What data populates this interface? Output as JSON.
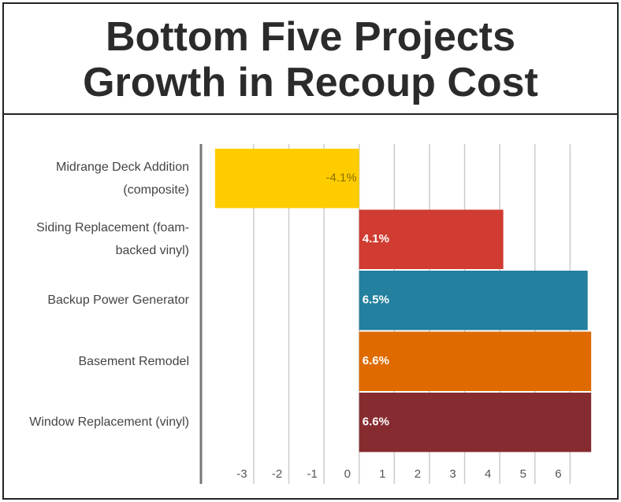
{
  "chart_data": {
    "type": "bar",
    "orientation": "horizontal",
    "title": "Bottom Five Projects Growth in Recoup Cost",
    "categories": [
      "Midrange Deck Addition (composite)",
      "Siding Replacement (foam-backed vinyl)",
      "Backup Power Generator",
      "Basement Remodel",
      "Window Replacement (vinyl)"
    ],
    "values": [
      -4.1,
      4.1,
      6.5,
      6.6,
      6.6
    ],
    "value_labels": [
      "-4.1%",
      "4.1%",
      "6.5%",
      "6.6%",
      "6.6%"
    ],
    "colors": [
      "#ffcc00",
      "#d03b32",
      "#23809e",
      "#df6b00",
      "#862b2f"
    ],
    "xlim": [
      -4.5,
      7.0
    ],
    "xticks": [
      -3,
      -2,
      -1,
      0,
      1,
      2,
      3,
      4,
      5,
      6
    ],
    "grid": true
  }
}
